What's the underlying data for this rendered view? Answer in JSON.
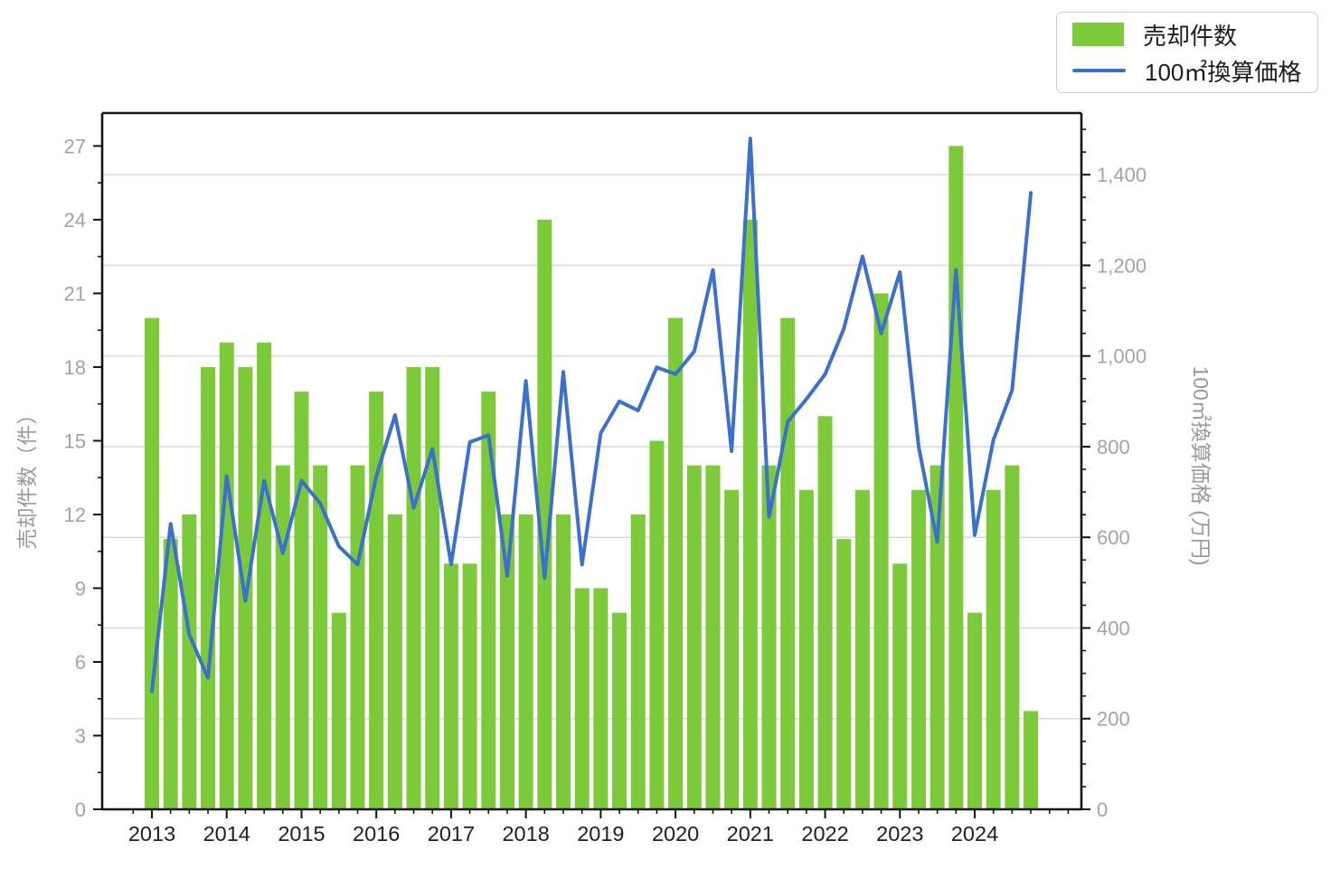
{
  "chart_data": {
    "type": "bar+line",
    "title": "",
    "grid": "horizontal gridlines at right-axis major ticks",
    "legend_position": "top-right",
    "categories": [
      "2013Q1",
      "2013Q2",
      "2013Q3",
      "2013Q4",
      "2014Q1",
      "2014Q2",
      "2014Q3",
      "2014Q4",
      "2015Q1",
      "2015Q2",
      "2015Q3",
      "2015Q4",
      "2016Q1",
      "2016Q2",
      "2016Q3",
      "2016Q4",
      "2017Q1",
      "2017Q2",
      "2017Q3",
      "2017Q4",
      "2018Q1",
      "2018Q2",
      "2018Q3",
      "2018Q4",
      "2019Q1",
      "2019Q2",
      "2019Q3",
      "2019Q4",
      "2020Q1",
      "2020Q2",
      "2020Q3",
      "2020Q4",
      "2021Q1",
      "2021Q2",
      "2021Q3",
      "2021Q4",
      "2022Q1",
      "2022Q2",
      "2022Q3",
      "2022Q4",
      "2023Q1",
      "2023Q2",
      "2023Q3",
      "2023Q4",
      "2024Q1",
      "2024Q2",
      "2024Q3",
      "2024Q4"
    ],
    "series": [
      {
        "name": "売却件数",
        "type": "bar",
        "axis": "left",
        "color": "#7cc93a",
        "values": [
          20,
          11,
          12,
          18,
          19,
          18,
          19,
          14,
          17,
          14,
          8,
          14,
          17,
          12,
          18,
          18,
          10,
          10,
          17,
          12,
          12,
          24,
          12,
          9,
          9,
          8,
          12,
          15,
          20,
          14,
          14,
          13,
          24,
          14,
          20,
          13,
          16,
          11,
          13,
          21,
          10,
          13,
          14,
          27,
          8,
          13,
          14,
          4
        ]
      },
      {
        "name": "100㎡換算価格",
        "type": "line",
        "axis": "right",
        "color": "#3b70cc",
        "values": [
          260,
          630,
          385,
          290,
          735,
          460,
          725,
          565,
          725,
          675,
          580,
          540,
          735,
          870,
          665,
          795,
          540,
          810,
          825,
          515,
          945,
          510,
          965,
          540,
          830,
          900,
          880,
          975,
          960,
          1010,
          1190,
          790,
          1480,
          645,
          855,
          905,
          960,
          1060,
          1220,
          1050,
          1185,
          800,
          590,
          1190,
          605,
          815,
          925,
          1360
        ]
      }
    ],
    "x_axis": {
      "year_labels": [
        "2013",
        "2014",
        "2015",
        "2016",
        "2017",
        "2018",
        "2019",
        "2020",
        "2021",
        "2022",
        "2023",
        "2024"
      ],
      "quarters_per_year": 4
    },
    "left_axis": {
      "label": "売却件数（件）",
      "ticks": [
        0,
        3,
        6,
        9,
        12,
        15,
        18,
        21,
        24,
        27
      ],
      "minor_step": 1.5,
      "range": [
        0,
        28.34
      ]
    },
    "right_axis": {
      "label": "100㎡換算価格 (万円)",
      "ticks": [
        0,
        200,
        400,
        600,
        800,
        1000,
        1200,
        1400
      ],
      "tick_labels": [
        "0",
        "200",
        "400",
        "600",
        "800",
        "1,000",
        "1,200",
        "1,400"
      ],
      "minor_step": 50,
      "range": [
        0,
        1536
      ]
    }
  },
  "colors": {
    "bar": "#7cc93a",
    "line": "#3b70cc",
    "grid": "#dcdcdc",
    "spine": "#141414",
    "y_tick_label": "#a3a3a3",
    "x_tick_label": "#1f1f1f",
    "axis_title": "#9a9a9a"
  }
}
